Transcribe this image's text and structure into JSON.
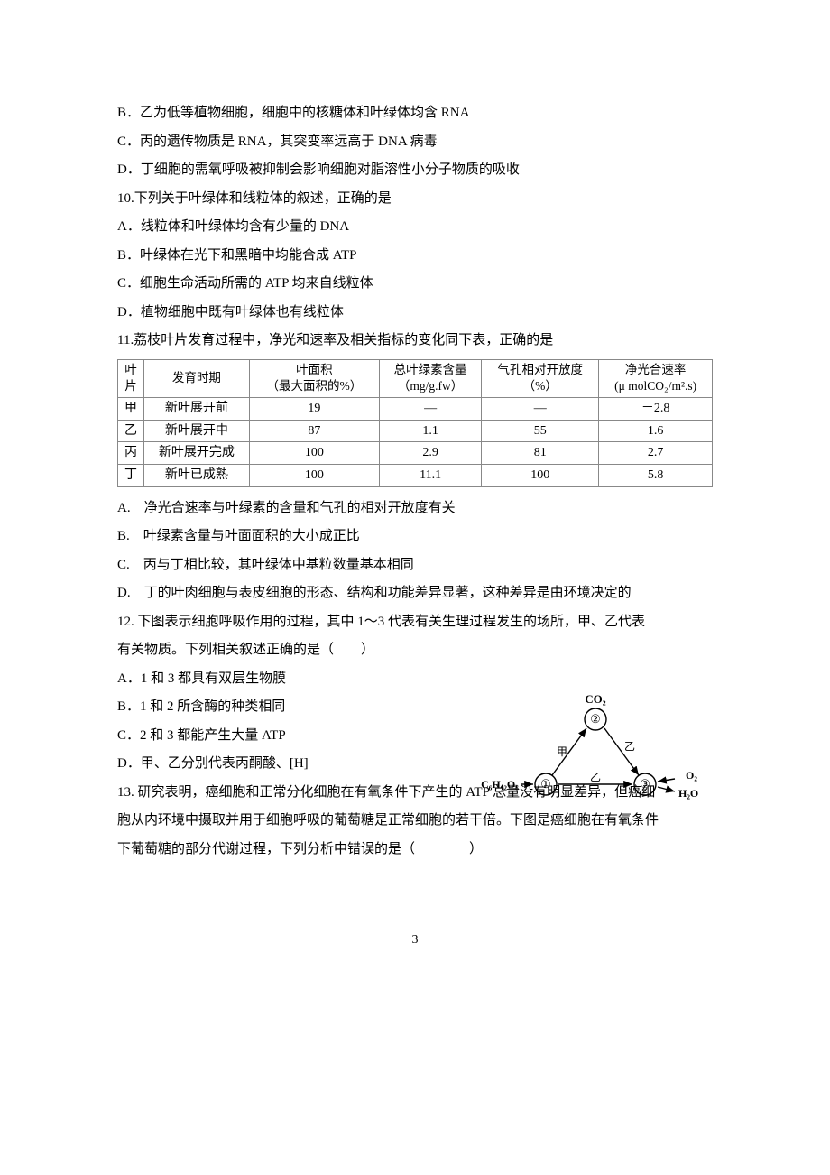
{
  "lines": {
    "lB": "B．乙为低等植物细胞，细胞中的核糖体和叶绿体均含 RNA",
    "lC": "C．丙的遗传物质是 RNA，其突变率远高于 DNA 病毒",
    "lD": "D．丁细胞的需氧呼吸被抑制会影响细胞对脂溶性小分子物质的吸收",
    "q10": "10.下列关于叶绿体和线粒体的叙述，正确的是",
    "q10A": "A．线粒体和叶绿体均含有少量的 DNA",
    "q10B": "B．叶绿体在光下和黑暗中均能合成 ATP",
    "q10C": "C．细胞生命活动所需的 ATP 均来自线粒体",
    "q10D": "D．植物细胞中既有叶绿体也有线粒体",
    "q11": "11.荔枝叶片发育过程中，净光和速率及相关指标的变化同下表，正确的是",
    "q11A": "A.　净光合速率与叶绿素的含量和气孔的相对开放度有关",
    "q11B": "B.　叶绿素含量与叶面面积的大小成正比",
    "q11C": "C.　丙与丁相比较，其叶绿体中基粒数量基本相同",
    "q11D": "D.　丁的叶肉细胞与表皮细胞的形态、结构和功能差异显著，这种差异是由环境决定的",
    "q12": "12. 下图表示细胞呼吸作用的过程，其中 1～3 代表有关生理过程发生的场所，甲、乙代表",
    "q12b": "有关物质。下列相关叙述正确的是（　　）",
    "q12A": "A．1 和 3 都具有双层生物膜",
    "q12B": "B．1 和 2 所含酶的种类相同",
    "q12C": "C．2 和 3 都能产生大量 ATP",
    "q12D": "D．甲、乙分别代表丙酮酸、[H]",
    "q13": "13. 研究表明，癌细胞和正常分化细胞在有氧条件下产生的 ATP 总量没有明显差异，但癌细",
    "q13b": "胞从内环境中摄取并用于细胞呼吸的葡萄糖是正常细胞的若干倍。下图是癌细胞在有氧条件",
    "q13c": "下葡萄糖的部分代谢过程，下列分析中错误的是（　　　　）"
  },
  "table": {
    "headers": {
      "c1a": "叶",
      "c1b": "片",
      "c2": "发育时期",
      "c3a": "叶面积",
      "c3b": "（最大面积的%）",
      "c4a": "总叶绿素含量",
      "c4b": "（mg/g.fw）",
      "c5a": "气孔相对开放度",
      "c5b": "（%）",
      "c6a": "净光合速率",
      "c6b": "(μ molCO₂/m².s)"
    },
    "rows": [
      [
        "甲",
        "新叶展开前",
        "19",
        "—",
        "—",
        "－2.8"
      ],
      [
        "乙",
        "新叶展开中",
        "87",
        "1.1",
        "55",
        "1.6"
      ],
      [
        "丙",
        "新叶展开完成",
        "100",
        "2.9",
        "81",
        "2.7"
      ],
      [
        "丁",
        "新叶已成熟",
        "100",
        "11.1",
        "100",
        "5.8"
      ]
    ]
  },
  "figure": {
    "label_co2": "CO₂",
    "label_jia": "甲",
    "label_yi": "乙",
    "label_zh": "乙",
    "label_glucose": "C₆H₁₂O₆",
    "label_o2": "O₂",
    "label_h2o": "H₂O",
    "node1": "①",
    "node2": "②",
    "node3": "③",
    "colors": {
      "stroke": "#000000",
      "text": "#000000",
      "bg": "#ffffff"
    },
    "stroke_width": 1.4,
    "fontsize": 13
  },
  "page_number": "3",
  "colors": {
    "text": "#000000",
    "border": "#888888",
    "background": "#ffffff"
  }
}
